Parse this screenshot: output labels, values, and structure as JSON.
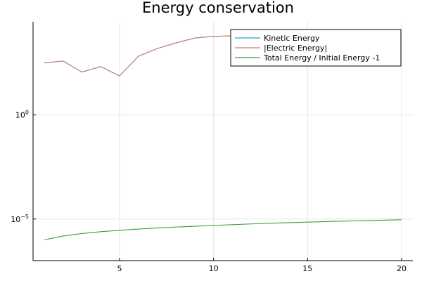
{
  "chart_data": {
    "type": "line",
    "title": "Energy conservation",
    "xlabel": "",
    "ylabel": "",
    "yscale": "log10",
    "xlim": [
      0.4,
      20.6
    ],
    "ylim": [
      1e-07,
      30000.0
    ],
    "x_ticks": [
      5,
      10,
      15,
      20
    ],
    "x_tick_labels": [
      "5",
      "10",
      "15",
      "20"
    ],
    "y_ticks": [
      1,
      1e-05
    ],
    "y_tick_labels": [
      {
        "base": "10",
        "exp": "0"
      },
      {
        "base": "10",
        "exp": "−5"
      }
    ],
    "grid": true,
    "legend_position": "top-right",
    "x": [
      1,
      2,
      3,
      4,
      5,
      6,
      7,
      8,
      9,
      10,
      11,
      12,
      13,
      14,
      15,
      16,
      17,
      18,
      19,
      20
    ],
    "series": [
      {
        "name": "Kinetic Energy",
        "color": "#1f9ee8",
        "values": [
          320,
          390,
          115,
          210,
          75,
          660,
          1550,
          2900,
          5000,
          5950,
          6300,
          6750,
          7150,
          6950,
          6700,
          6700,
          6700,
          6800,
          6900,
          7000
        ]
      },
      {
        "name": "|Electric Energy|",
        "color": "#c8816b",
        "values": [
          320,
          390,
          115,
          210,
          75,
          660,
          1550,
          2900,
          5000,
          5950,
          6300,
          6750,
          7150,
          6950,
          6700,
          6700,
          6700,
          6800,
          6900,
          7000
        ]
      },
      {
        "name": "Total Energy / Initial Energy -1",
        "color": "#3a9e3a",
        "values": [
          1e-06,
          1.53e-06,
          2e-06,
          2.45e-06,
          2.88e-06,
          3.3e-06,
          3.7e-06,
          4.1e-06,
          4.5e-06,
          4.92e-06,
          5.35e-06,
          5.8e-06,
          6.25e-06,
          6.68e-06,
          7.1e-06,
          7.52e-06,
          7.95e-06,
          8.38e-06,
          8.8e-06,
          9.2e-06
        ]
      }
    ]
  }
}
